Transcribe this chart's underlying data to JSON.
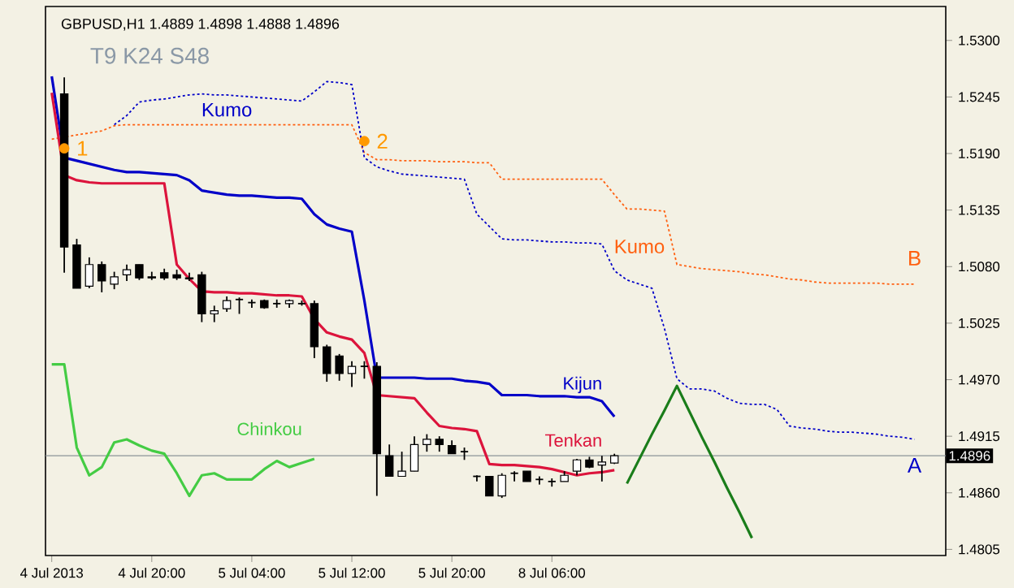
{
  "chart_data": {
    "type": "candlestick",
    "title": "GBPUSD,H1  1.4889 1.4898 1.4888 1.4896",
    "annotations": [
      "T9 K24 S48",
      "Kumo",
      "Kumo"
    ],
    "categories": [
      "4 Jul 2013",
      null,
      null,
      null,
      null,
      null,
      null,
      null,
      "4 Jul 20:00",
      null,
      null,
      null,
      null,
      null,
      null,
      null,
      "5 Jul 04:00",
      null,
      null,
      null,
      null,
      null,
      null,
      null,
      "5 Jul 12:00",
      null,
      null,
      null,
      null,
      null,
      null,
      null,
      "5 Jul 20:00",
      null,
      null,
      null,
      null,
      null,
      null,
      null,
      "8 Jul 06:00",
      null,
      null,
      null,
      null,
      null,
      null,
      null,
      null,
      null,
      null,
      null,
      null,
      null,
      null,
      null,
      null,
      null,
      null,
      null,
      null,
      null,
      null,
      null,
      null,
      null,
      null,
      null,
      null,
      null,
      null,
      null
    ],
    "ohlc": [
      null,
      [
        1.5248,
        1.5264,
        1.5074,
        1.5099
      ],
      [
        1.5101,
        1.5107,
        1.5059,
        1.5059
      ],
      [
        1.5061,
        1.5089,
        1.5059,
        1.5082
      ],
      [
        1.5082,
        1.5085,
        1.5055,
        1.5066
      ],
      [
        1.5063,
        1.5075,
        1.5058,
        1.507
      ],
      [
        1.5072,
        1.5082,
        1.5066,
        1.5077
      ],
      [
        1.5082,
        1.5082,
        1.5067,
        1.5069
      ],
      [
        1.507,
        1.5075,
        1.5067,
        1.5069
      ],
      [
        1.5074,
        1.5078,
        1.5067,
        1.5069
      ],
      [
        1.5072,
        1.5077,
        1.5067,
        1.5069
      ],
      [
        1.5069,
        1.5074,
        1.5066,
        1.5068
      ],
      [
        1.5072,
        1.5075,
        1.5026,
        1.5034
      ],
      [
        1.5034,
        1.5042,
        1.5026,
        1.5037
      ],
      [
        1.5039,
        1.5051,
        1.5036,
        1.5047
      ],
      [
        1.5048,
        1.505,
        1.5034,
        1.5048
      ],
      [
        1.5045,
        1.5048,
        1.504,
        1.5045
      ],
      [
        1.5047,
        1.5048,
        1.5039,
        1.504
      ],
      [
        1.5044,
        1.5048,
        1.504,
        1.5044
      ],
      [
        1.5044,
        1.5048,
        1.504,
        1.5047
      ],
      [
        1.5044,
        1.5047,
        1.5042,
        1.5044
      ],
      [
        1.5044,
        1.5047,
        1.4991,
        1.5002
      ],
      [
        1.5002,
        1.5004,
        1.4968,
        1.4976
      ],
      [
        1.4993,
        1.4995,
        1.4969,
        1.4976
      ],
      [
        1.4976,
        1.4988,
        1.4963,
        1.4983
      ],
      [
        1.4983,
        1.4988,
        1.4971,
        1.4983
      ],
      [
        1.4983,
        1.4987,
        1.4857,
        1.4898
      ],
      [
        1.4896,
        1.4907,
        1.4876,
        1.4876
      ],
      [
        1.4876,
        1.49,
        1.4876,
        1.4881
      ],
      [
        1.4881,
        1.4915,
        1.4881,
        1.4907
      ],
      [
        1.4907,
        1.4917,
        1.49,
        1.4912
      ],
      [
        1.4912,
        1.4915,
        1.49,
        1.4907
      ],
      [
        1.4906,
        1.4911,
        1.4898,
        1.4898
      ],
      [
        1.49,
        1.4904,
        1.4892,
        1.49
      ],
      [
        1.4876,
        1.4877,
        1.4871,
        1.4876
      ],
      [
        1.4876,
        1.4876,
        1.4857,
        1.4857
      ],
      [
        1.4857,
        1.4879,
        1.4855,
        1.4877
      ],
      [
        1.4879,
        1.4881,
        1.4871,
        1.4879
      ],
      [
        1.4881,
        1.4881,
        1.4871,
        1.4871
      ],
      [
        1.4873,
        1.4876,
        1.4868,
        1.4873
      ],
      [
        1.4871,
        1.4874,
        1.4866,
        1.4871
      ],
      [
        1.4871,
        1.4881,
        1.4871,
        1.4877
      ],
      [
        1.4881,
        1.4893,
        1.4877,
        1.4892
      ],
      [
        1.4892,
        1.4895,
        1.4884,
        1.4885
      ],
      [
        1.4887,
        1.4896,
        1.4871,
        1.489
      ],
      [
        1.4889,
        1.4898,
        1.4888,
        1.4896
      ],
      null,
      null,
      null,
      null,
      null,
      null,
      null,
      null,
      null,
      null,
      null,
      null,
      null,
      null,
      null,
      null,
      null,
      null,
      null,
      null,
      null,
      null,
      null,
      null,
      null,
      null
    ],
    "series": [
      {
        "type": "line",
        "name": "B",
        "line_style": "dotted",
        "color": "#ff6010",
        "values": [
          1.5204,
          1.5206,
          1.5208,
          1.521,
          1.5212,
          1.5217,
          1.5218,
          1.5218,
          1.5218,
          1.5218,
          1.5218,
          1.5218,
          1.5218,
          1.5218,
          1.5218,
          1.5218,
          1.5218,
          1.5218,
          1.5218,
          1.5218,
          1.5218,
          1.5218,
          1.5218,
          1.5218,
          1.5218,
          1.5191,
          1.5184,
          1.5184,
          1.5183,
          1.5183,
          1.5183,
          1.5182,
          1.5182,
          1.5182,
          1.5181,
          1.5181,
          1.5165,
          1.5165,
          1.5165,
          1.5165,
          1.5165,
          1.5165,
          1.5165,
          1.5165,
          1.5165,
          1.515,
          1.5136,
          1.5136,
          1.5135,
          1.5134,
          1.5082,
          1.508,
          1.5078,
          1.5077,
          1.5076,
          1.5075,
          1.5073,
          1.5072,
          1.507,
          1.5068,
          1.5067,
          1.5065,
          1.5064,
          1.5064,
          1.5064,
          1.5064,
          1.5064,
          1.5063,
          1.5063,
          1.5063,
          null,
          null
        ]
      },
      {
        "type": "line",
        "name": "A",
        "line_style": "dotted",
        "color": "#0000c8",
        "values": [
          null,
          null,
          null,
          null,
          null,
          1.5218,
          1.5227,
          1.524,
          1.5242,
          1.5243,
          1.5245,
          1.5247,
          1.5248,
          1.5247,
          1.5247,
          1.5246,
          1.5245,
          1.5244,
          1.5243,
          1.5242,
          1.5241,
          1.525,
          1.526,
          1.5259,
          1.5257,
          1.5186,
          1.5177,
          1.5173,
          1.517,
          1.5169,
          1.5168,
          1.5167,
          1.5166,
          1.5165,
          1.5131,
          1.5119,
          1.5107,
          1.5106,
          1.5106,
          1.5105,
          1.5104,
          1.5104,
          1.5103,
          1.5103,
          1.5102,
          1.5076,
          1.5067,
          1.5063,
          1.5059,
          1.502,
          1.4971,
          1.4961,
          1.4961,
          1.4959,
          1.4952,
          1.4947,
          1.4946,
          1.4946,
          1.4941,
          1.4925,
          1.4923,
          1.4922,
          1.492,
          1.4919,
          1.4919,
          1.4918,
          1.4917,
          1.4915,
          1.4914,
          1.4912,
          null,
          null
        ]
      },
      {
        "type": "line",
        "name": "Chinkou",
        "color": "#44cc44",
        "values": [
          1.4985,
          1.4985,
          1.4904,
          1.4877,
          1.4885,
          1.4909,
          1.4912,
          1.4906,
          1.4901,
          1.4898,
          1.4879,
          1.4857,
          1.4877,
          1.4879,
          1.4873,
          1.4873,
          1.4873,
          1.4883,
          1.4891,
          1.4885,
          1.4889,
          1.4893,
          null,
          null,
          null,
          null,
          null,
          null,
          null,
          null,
          null,
          null,
          null,
          null,
          null,
          null,
          null,
          null,
          null,
          null,
          null,
          null,
          null,
          null,
          null,
          null,
          null,
          null,
          null,
          null,
          null,
          null,
          null,
          null,
          null,
          null,
          null,
          null,
          null,
          null,
          null,
          null,
          null,
          null,
          null,
          null,
          null,
          null,
          null,
          null,
          null,
          null
        ]
      },
      {
        "type": "line",
        "name": "Kijun",
        "color": "#0000c8",
        "values": [
          1.5265,
          1.5186,
          1.5183,
          1.518,
          1.5177,
          1.5174,
          1.5172,
          1.5172,
          1.5171,
          1.517,
          1.5169,
          1.5164,
          1.5154,
          1.5152,
          1.515,
          1.5149,
          1.5149,
          1.5148,
          1.5147,
          1.5147,
          1.5146,
          1.5131,
          1.5121,
          1.5117,
          1.5114,
          1.5047,
          1.4972,
          1.4972,
          1.4972,
          1.4972,
          1.4971,
          1.4971,
          1.4971,
          1.4969,
          1.4968,
          1.4966,
          1.4955,
          1.4955,
          1.4955,
          1.4954,
          1.4954,
          1.4954,
          1.4953,
          1.4953,
          1.4949,
          1.4934,
          null,
          null,
          null,
          null,
          null,
          null,
          null,
          null,
          null,
          null,
          null,
          null,
          null,
          null,
          null,
          null,
          null,
          null,
          null,
          null,
          null,
          null,
          null,
          null,
          null,
          null
        ]
      },
      {
        "type": "line",
        "name": "Tenkan",
        "color": "#dc143c",
        "values": [
          1.5249,
          1.5169,
          1.5164,
          1.5162,
          1.5161,
          1.5161,
          1.5161,
          1.5161,
          1.5161,
          1.5161,
          1.5082,
          1.5068,
          1.5056,
          1.5055,
          1.5055,
          1.5054,
          1.5054,
          1.5053,
          1.5052,
          1.5052,
          1.5051,
          1.5029,
          1.5016,
          1.5012,
          1.5009,
          1.4996,
          1.4955,
          1.4954,
          1.4953,
          1.4952,
          1.4938,
          1.4925,
          1.4923,
          1.4922,
          1.492,
          1.4888,
          1.4887,
          1.4887,
          1.4886,
          1.4885,
          1.4883,
          1.488,
          1.4877,
          1.4879,
          1.488,
          1.4882,
          null,
          null,
          null,
          null,
          null,
          null,
          null,
          null,
          null,
          null,
          null,
          null,
          null,
          null,
          null,
          null,
          null,
          null,
          null,
          null,
          null,
          null,
          null,
          null,
          null,
          null
        ]
      },
      {
        "type": "line",
        "color": "#1a7d1a",
        "values": [
          null,
          null,
          null,
          null,
          null,
          null,
          null,
          null,
          null,
          null,
          null,
          null,
          null,
          null,
          null,
          null,
          null,
          null,
          null,
          null,
          null,
          null,
          null,
          null,
          null,
          null,
          null,
          null,
          null,
          null,
          null,
          null,
          null,
          null,
          null,
          null,
          null,
          null,
          null,
          null,
          null,
          null,
          null,
          null,
          null,
          null,
          1.4869,
          1.4893,
          1.4917,
          1.494,
          1.4964,
          1.4939,
          1.4914,
          1.489,
          1.4865,
          1.4841,
          1.4816,
          null,
          null,
          null,
          null,
          null,
          null,
          null,
          null,
          null,
          null,
          null,
          null,
          null,
          null,
          null
        ]
      },
      {
        "type": "scatter",
        "name": "1",
        "color": "#ff9900",
        "values": [
          null,
          1.5195,
          null,
          null,
          null,
          null,
          null,
          null,
          null,
          null,
          null,
          null,
          null,
          null,
          null,
          null,
          null,
          null,
          null,
          null,
          null,
          null,
          null,
          null,
          null,
          null,
          null,
          null,
          null,
          null,
          null,
          null,
          null,
          null,
          null,
          null,
          null,
          null,
          null,
          null,
          null,
          null,
          null,
          null,
          null,
          null,
          null,
          null,
          null,
          null,
          null,
          null,
          null,
          null,
          null,
          null,
          null,
          null,
          null,
          null,
          null,
          null,
          null,
          null,
          null,
          null,
          null,
          null,
          null,
          null,
          null,
          null
        ]
      },
      {
        "type": "scatter",
        "name": "2",
        "color": "#ff9900",
        "values": [
          null,
          null,
          null,
          null,
          null,
          null,
          null,
          null,
          null,
          null,
          null,
          null,
          null,
          null,
          null,
          null,
          null,
          null,
          null,
          null,
          null,
          null,
          null,
          null,
          null,
          1.5202,
          null,
          null,
          null,
          null,
          null,
          null,
          null,
          null,
          null,
          null,
          null,
          null,
          null,
          null,
          null,
          null,
          null,
          null,
          null,
          null,
          null,
          null,
          null,
          null,
          null,
          null,
          null,
          null,
          null,
          null,
          null,
          null,
          null,
          null,
          null,
          null,
          null,
          null,
          null,
          null,
          null,
          null,
          null,
          null,
          null,
          null
        ]
      }
    ],
    "ref_lines": [
      {
        "axis": "y",
        "value": 1.4896,
        "label": "1.4896",
        "color": "#8c9498"
      }
    ],
    "ylim": [
      1.4799,
      1.5333
    ],
    "yticks": [
      {
        "value": 1.4805,
        "label": "1.4805"
      },
      {
        "value": 1.486,
        "label": "1.4860"
      },
      {
        "value": 1.4915,
        "label": "1.4915"
      },
      {
        "value": 1.497,
        "label": "1.4970"
      },
      {
        "value": 1.5025,
        "label": "1.5025"
      },
      {
        "value": 1.508,
        "label": "1.5080"
      },
      {
        "value": 1.5135,
        "label": "1.5135"
      },
      {
        "value": 1.519,
        "label": "1.5190"
      },
      {
        "value": 1.5245,
        "label": "1.5245"
      },
      {
        "value": 1.53,
        "label": "1.5300"
      }
    ]
  }
}
